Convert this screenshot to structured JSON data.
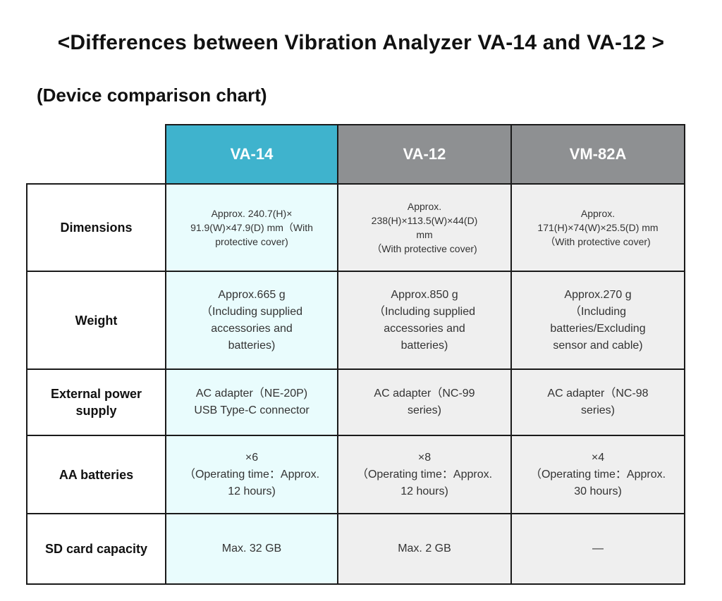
{
  "title": "<Differences between Vibration Analyzer VA-14 and VA-12 >",
  "subtitle": "(Device comparison chart)",
  "table": {
    "columns": [
      "VA-14",
      "VA-12",
      "VM-82A"
    ],
    "header_colors": [
      "#3fb3cd",
      "#8e9092",
      "#8e9092"
    ],
    "rows": [
      {
        "label": "Dimensions",
        "cells": [
          [
            "Approx. 240.7(H)×",
            "91.9(W)×47.9(D) mm（With",
            "protective cover)"
          ],
          [
            "Approx.",
            "238(H)×113.5(W)×44(D)",
            "mm",
            "（With protective cover)"
          ],
          [
            "Approx.",
            "171(H)×74(W)×25.5(D) mm",
            "（With protective cover)"
          ]
        ]
      },
      {
        "label": "Weight",
        "cells": [
          [
            "Approx.665 g",
            "（Including supplied",
            "accessories and",
            "batteries)"
          ],
          [
            "Approx.850 g",
            "（Including supplied",
            "accessories and",
            "batteries)"
          ],
          [
            "Approx.270 g",
            "（Including",
            "batteries/Excluding",
            "sensor and cable)"
          ]
        ]
      },
      {
        "label_lines": [
          "External power",
          "supply"
        ],
        "cells": [
          [
            "AC adapter（NE-20P)",
            "USB Type-C connector"
          ],
          [
            "AC adapter（NC-99",
            "series)"
          ],
          [
            "AC adapter（NC-98",
            "series)"
          ]
        ]
      },
      {
        "label": "AA batteries",
        "cells": [
          [
            "×6",
            "（Operating time：Approx.",
            "12 hours)"
          ],
          [
            "×8",
            "（Operating time：Approx.",
            "12 hours)"
          ],
          [
            "×4",
            "（Operating time：Approx.",
            "30 hours)"
          ]
        ]
      },
      {
        "label": "SD card capacity",
        "cells": [
          [
            "Max. 32 GB"
          ],
          [
            "Max. 2 GB"
          ],
          [
            "—"
          ]
        ]
      }
    ]
  }
}
